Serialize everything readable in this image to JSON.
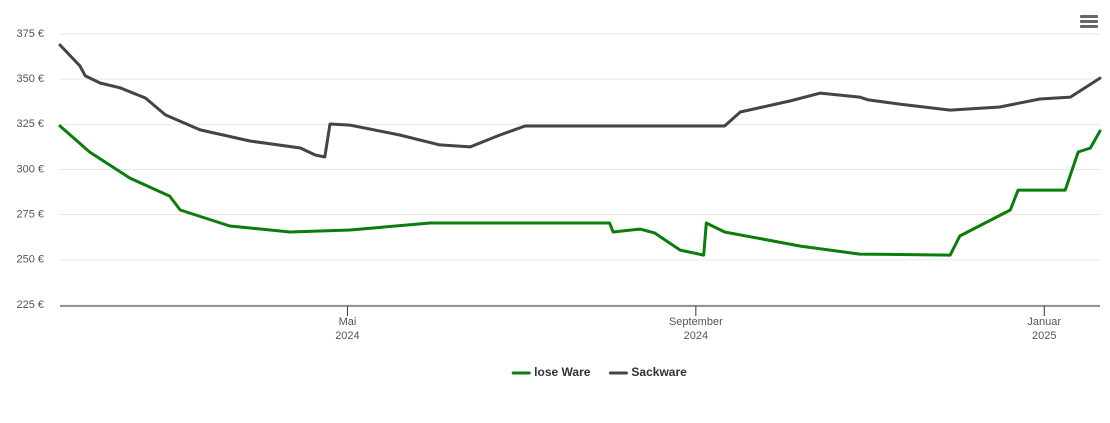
{
  "chart_data": {
    "type": "line",
    "xlim": [
      1.7,
      13.64
    ],
    "xticks": [
      {
        "value": 5,
        "label": "Mai 2024"
      },
      {
        "value": 9,
        "label": "September 2024"
      },
      {
        "value": 13,
        "label": "Januar 2025"
      }
    ],
    "ylim": [
      225,
      375
    ],
    "yticks": [
      {
        "value": 225,
        "label": "225 €"
      },
      {
        "value": 250,
        "label": "250 €"
      },
      {
        "value": 275,
        "label": "275 €"
      },
      {
        "value": 300,
        "label": "300 €"
      },
      {
        "value": 325,
        "label": "325 €"
      },
      {
        "value": 350,
        "label": "350 €"
      },
      {
        "value": 375,
        "label": "375 €"
      }
    ],
    "grid": true,
    "legend": "bottom",
    "series": [
      {
        "name": "lose Ware",
        "color": "#0a7d0a",
        "x": [
          1.7,
          2.04,
          2.5,
          2.96,
          3.08,
          3.65,
          4.34,
          5.03,
          5.95,
          8.01,
          8.05,
          8.36,
          8.53,
          8.82,
          9.09,
          9.12,
          9.33,
          10.2,
          10.88,
          11.92,
          12.03,
          12.61,
          12.7,
          13.24,
          13.39,
          13.53,
          13.64
        ],
        "values": [
          324.1,
          309.7,
          295.3,
          285.3,
          277.6,
          268.7,
          265.4,
          266.5,
          270.4,
          270.4,
          265.4,
          267.0,
          264.8,
          255.4,
          252.6,
          270.4,
          265.4,
          257.6,
          253.2,
          252.6,
          263.2,
          277.6,
          288.6,
          288.6,
          309.7,
          311.9,
          321.3
        ]
      },
      {
        "name": "Sackware",
        "color": "#434348",
        "x": [
          1.7,
          1.93,
          1.99,
          2.16,
          2.39,
          2.68,
          2.91,
          3.31,
          3.88,
          4.46,
          4.63,
          4.74,
          4.8,
          5.03,
          5.6,
          6.06,
          6.41,
          6.75,
          7.04,
          7.9,
          9.33,
          9.51,
          10.08,
          10.43,
          10.88,
          10.98,
          11.34,
          11.92,
          12.49,
          12.95,
          13.3,
          13.64
        ],
        "values": [
          368.9,
          357.3,
          351.8,
          347.9,
          345.2,
          339.6,
          330.2,
          321.9,
          315.8,
          311.9,
          308.0,
          306.9,
          325.2,
          324.6,
          319.1,
          313.6,
          312.5,
          319.1,
          324.1,
          324.1,
          324.1,
          331.8,
          337.9,
          342.3,
          340.1,
          338.5,
          336.2,
          332.9,
          334.6,
          339.0,
          340.1,
          350.6
        ]
      }
    ]
  }
}
